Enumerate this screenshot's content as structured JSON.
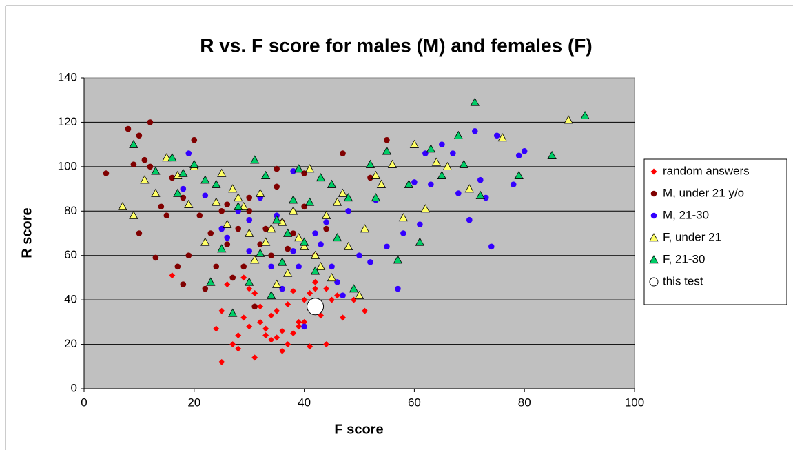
{
  "chart_data": {
    "type": "scatter",
    "title": "R vs. F score for males (M) and females (F)",
    "x_label": "F score",
    "y_label": "R score",
    "xlim": [
      0,
      100
    ],
    "xticks": [
      0,
      20,
      40,
      60,
      80,
      100
    ],
    "ylim": [
      0,
      140
    ],
    "yticks": [
      0,
      20,
      40,
      60,
      80,
      100,
      120,
      140
    ],
    "grid": true,
    "legend": "right",
    "series": [
      {
        "name": "random answers",
        "color": "#ff0000",
        "marker": "diamond",
        "x": [
          25,
          27,
          28,
          29,
          30,
          31,
          32,
          33,
          34,
          35,
          36,
          37,
          38,
          39,
          40,
          41,
          42,
          43,
          44,
          45,
          46,
          47,
          49,
          51,
          16,
          25,
          26,
          30,
          32,
          34,
          36,
          38,
          40,
          42,
          28,
          33,
          37,
          41,
          29,
          35,
          31,
          39,
          24,
          44
        ],
        "values": [
          12,
          20,
          24,
          32,
          28,
          14,
          30,
          24,
          22,
          35,
          17,
          20,
          25,
          28,
          40,
          19,
          45,
          33,
          20,
          40,
          42,
          32,
          40,
          35,
          51,
          35,
          47,
          45,
          37,
          33,
          26,
          44,
          30,
          48,
          18,
          27,
          38,
          43,
          50,
          23,
          43,
          30,
          27,
          45
        ]
      },
      {
        "name": "M, under 21 y/o",
        "color": "#800000",
        "marker": "circle",
        "x": [
          4,
          8,
          9,
          10,
          11,
          12,
          13,
          14,
          15,
          16,
          17,
          18,
          19,
          20,
          21,
          22,
          23,
          24,
          25,
          26,
          27,
          28,
          29,
          30,
          31,
          32,
          33,
          34,
          35,
          36,
          37,
          38,
          40,
          42,
          44,
          47,
          52,
          55,
          10,
          12,
          18,
          20,
          26,
          30,
          35,
          40
        ],
        "values": [
          97,
          117,
          101,
          114,
          103,
          120,
          59,
          82,
          78,
          95,
          55,
          47,
          60,
          112,
          78,
          45,
          70,
          55,
          80,
          65,
          50,
          72,
          55,
          86,
          37,
          65,
          72,
          60,
          99,
          75,
          63,
          70,
          97,
          60,
          72,
          106,
          95,
          112,
          70,
          100,
          86,
          100,
          83,
          80,
          91,
          82
        ]
      },
      {
        "name": "M, 21-30",
        "color": "#3300ff",
        "marker": "circle",
        "x": [
          18,
          19,
          22,
          25,
          28,
          30,
          32,
          34,
          35,
          36,
          38,
          39,
          40,
          42,
          44,
          45,
          46,
          48,
          50,
          52,
          53,
          55,
          57,
          58,
          60,
          61,
          62,
          63,
          65,
          67,
          68,
          70,
          71,
          72,
          73,
          74,
          75,
          78,
          79,
          80,
          38,
          43,
          47,
          30,
          26
        ],
        "values": [
          90,
          106,
          87,
          72,
          80,
          62,
          86,
          55,
          78,
          45,
          62,
          55,
          28,
          70,
          75,
          55,
          48,
          80,
          60,
          57,
          85,
          64,
          45,
          70,
          93,
          74,
          106,
          92,
          110,
          106,
          88,
          76,
          116,
          94,
          86,
          64,
          114,
          92,
          105,
          107,
          98,
          65,
          42,
          76,
          68
        ]
      },
      {
        "name": "F, under 21",
        "color": "#ffff66",
        "marker": "triangle",
        "x": [
          7,
          9,
          11,
          13,
          15,
          17,
          19,
          20,
          22,
          24,
          25,
          26,
          27,
          28,
          29,
          30,
          31,
          32,
          33,
          34,
          35,
          36,
          37,
          38,
          39,
          40,
          41,
          42,
          43,
          44,
          45,
          46,
          47,
          48,
          50,
          51,
          53,
          54,
          56,
          58,
          60,
          62,
          64,
          66,
          68,
          70,
          76,
          88
        ],
        "values": [
          82,
          78,
          94,
          88,
          104,
          96,
          83,
          100,
          66,
          84,
          97,
          74,
          90,
          86,
          82,
          70,
          58,
          88,
          66,
          72,
          47,
          75,
          52,
          80,
          68,
          64,
          99,
          60,
          55,
          78,
          50,
          84,
          88,
          64,
          42,
          72,
          96,
          92,
          101,
          77,
          110,
          81,
          102,
          100,
          114,
          90,
          113,
          121
        ]
      },
      {
        "name": "F, 21-30",
        "color": "#00cc66",
        "marker": "triangle",
        "x": [
          9,
          13,
          16,
          17,
          18,
          20,
          22,
          23,
          24,
          25,
          27,
          28,
          30,
          31,
          32,
          33,
          34,
          35,
          36,
          37,
          38,
          39,
          40,
          41,
          42,
          43,
          45,
          46,
          48,
          49,
          52,
          53,
          55,
          57,
          59,
          61,
          63,
          65,
          68,
          69,
          71,
          72,
          79,
          85,
          91
        ],
        "values": [
          110,
          98,
          104,
          88,
          97,
          101,
          94,
          48,
          92,
          63,
          34,
          82,
          48,
          103,
          61,
          96,
          42,
          76,
          57,
          70,
          85,
          99,
          66,
          84,
          53,
          95,
          92,
          68,
          86,
          45,
          101,
          86,
          107,
          58,
          92,
          66,
          108,
          96,
          114,
          101,
          129,
          87,
          96,
          105,
          123
        ]
      },
      {
        "name": "this test",
        "color": "#ffffff",
        "marker": "big-circle",
        "x": [
          42
        ],
        "values": [
          37
        ]
      }
    ]
  }
}
